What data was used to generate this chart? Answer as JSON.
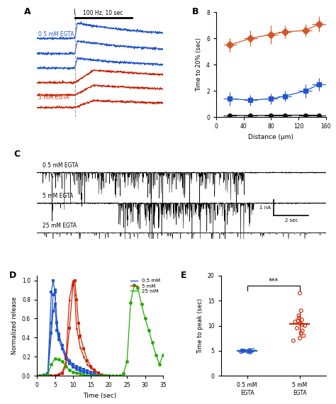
{
  "panel_B": {
    "orange_x": [
      20,
      50,
      80,
      100,
      130,
      150
    ],
    "orange_y": [
      5.5,
      6.0,
      6.3,
      6.5,
      6.6,
      7.1
    ],
    "orange_xerr": [
      10,
      10,
      10,
      10,
      10,
      10
    ],
    "orange_yerr": [
      0.5,
      0.6,
      0.7,
      0.5,
      0.5,
      0.6
    ],
    "blue_x": [
      20,
      50,
      80,
      100,
      130,
      150
    ],
    "blue_y": [
      1.4,
      1.3,
      1.4,
      1.6,
      2.0,
      2.5
    ],
    "blue_xerr": [
      10,
      10,
      10,
      10,
      10,
      10
    ],
    "blue_yerr": [
      0.5,
      0.4,
      0.4,
      0.4,
      0.5,
      0.5
    ],
    "black_x": [
      20,
      50,
      80,
      100,
      130,
      150
    ],
    "black_y": [
      0.15,
      0.12,
      0.15,
      0.15,
      0.15,
      0.15
    ],
    "black_xerr": [
      10,
      10,
      10,
      10,
      10,
      10
    ],
    "black_yerr": [
      0.1,
      0.1,
      0.1,
      0.1,
      0.1,
      0.1
    ],
    "ylabel": "Time to 20% (sec)",
    "xlabel": "Distance (μm)",
    "ylim": [
      0,
      8
    ],
    "xlim": [
      0,
      160
    ]
  },
  "panel_D": {
    "blue1_x": [
      0,
      1,
      2,
      3,
      4,
      4.5,
      5,
      5.5,
      6,
      7,
      8,
      9,
      10,
      11,
      12,
      13,
      14,
      15,
      16,
      17,
      18,
      19,
      20
    ],
    "blue1_y": [
      0.0,
      0.0,
      0.01,
      0.02,
      0.88,
      1.0,
      0.88,
      0.56,
      0.44,
      0.32,
      0.22,
      0.16,
      0.12,
      0.1,
      0.08,
      0.07,
      0.05,
      0.04,
      0.03,
      0.02,
      0.01,
      0.0,
      0.0
    ],
    "blue2_x": [
      0,
      1,
      2,
      3,
      4,
      4.5,
      5,
      5.5,
      6,
      7,
      8,
      9,
      10,
      11,
      12,
      13,
      14,
      15,
      16,
      17,
      18,
      19,
      20
    ],
    "blue2_y": [
      0.0,
      0.0,
      0.0,
      0.01,
      0.55,
      0.85,
      0.9,
      0.55,
      0.42,
      0.32,
      0.2,
      0.14,
      0.1,
      0.08,
      0.06,
      0.05,
      0.03,
      0.02,
      0.01,
      0.01,
      0.0,
      0.0,
      0.0
    ],
    "blue3_x": [
      0,
      1,
      2,
      3,
      4,
      4.5,
      5,
      5.5,
      6,
      7,
      8,
      9,
      10,
      11,
      12,
      13,
      14,
      15,
      16,
      17,
      18,
      19,
      20
    ],
    "blue3_y": [
      0.0,
      0.0,
      0.0,
      0.0,
      0.45,
      0.68,
      0.75,
      0.48,
      0.38,
      0.28,
      0.18,
      0.13,
      0.09,
      0.07,
      0.05,
      0.04,
      0.03,
      0.02,
      0.01,
      0.0,
      0.0,
      0.0,
      0.0
    ],
    "red1_x": [
      0,
      1,
      2,
      3,
      4,
      5,
      6,
      7,
      8,
      9,
      10,
      10.5,
      11,
      11.5,
      12,
      13,
      14,
      15,
      16,
      17,
      18,
      19,
      20
    ],
    "red1_y": [
      0.0,
      0.0,
      0.0,
      0.0,
      0.0,
      0.0,
      0.02,
      0.04,
      0.14,
      0.8,
      1.0,
      0.85,
      0.5,
      0.4,
      0.3,
      0.2,
      0.12,
      0.08,
      0.05,
      0.03,
      0.01,
      0.0,
      0.0
    ],
    "red2_x": [
      0,
      1,
      2,
      3,
      4,
      5,
      6,
      7,
      8,
      9,
      10,
      10.5,
      11,
      11.5,
      12,
      13,
      14,
      15,
      16,
      17,
      18,
      19,
      20
    ],
    "red2_y": [
      0.0,
      0.0,
      0.0,
      0.0,
      0.0,
      0.0,
      0.01,
      0.02,
      0.1,
      0.5,
      0.95,
      1.0,
      0.8,
      0.55,
      0.42,
      0.28,
      0.16,
      0.1,
      0.06,
      0.03,
      0.01,
      0.0,
      0.0
    ],
    "green_x": [
      0,
      1,
      2,
      3,
      4,
      5,
      6,
      7,
      8,
      9,
      10,
      11,
      12,
      13,
      14,
      15,
      16,
      17,
      18,
      19,
      20,
      21,
      22,
      23,
      24,
      25,
      26,
      27,
      28,
      29,
      30,
      31,
      32,
      33,
      34,
      35
    ],
    "green_y": [
      0.0,
      0.0,
      0.0,
      0.01,
      0.12,
      0.18,
      0.17,
      0.15,
      0.1,
      0.06,
      0.04,
      0.03,
      0.02,
      0.01,
      0.0,
      0.0,
      0.0,
      0.0,
      0.0,
      0.0,
      0.0,
      0.0,
      0.0,
      0.0,
      0.02,
      0.15,
      0.77,
      0.95,
      0.92,
      0.75,
      0.6,
      0.48,
      0.35,
      0.22,
      0.12,
      0.22
    ],
    "ylabel": "Normalized release",
    "xlabel": "Time (sec)",
    "xlim": [
      0,
      35
    ],
    "ylim": [
      0,
      1.05
    ]
  },
  "panel_E": {
    "blue_points": [
      4.7,
      4.8,
      4.8,
      4.9,
      4.9,
      5.0,
      5.0,
      5.0,
      5.0,
      5.0,
      5.1,
      5.1
    ],
    "red_points": [
      7.0,
      7.5,
      8.0,
      8.5,
      9.0,
      9.5,
      10.0,
      10.2,
      10.5,
      10.8,
      11.0,
      11.2,
      11.5,
      12.0,
      13.0,
      16.5
    ],
    "ylabel": "Time to peak (sec)",
    "xlabels": [
      "0.5 mM\nEGTA",
      "5 mM\nEGTA"
    ],
    "ylim": [
      0,
      20
    ],
    "significance": "***"
  },
  "colors": {
    "orange": "#D4572A",
    "blue": "#2255CC",
    "black": "#111111",
    "red": "#CC2200",
    "green": "#22AA00",
    "panel_label": "#000000"
  }
}
